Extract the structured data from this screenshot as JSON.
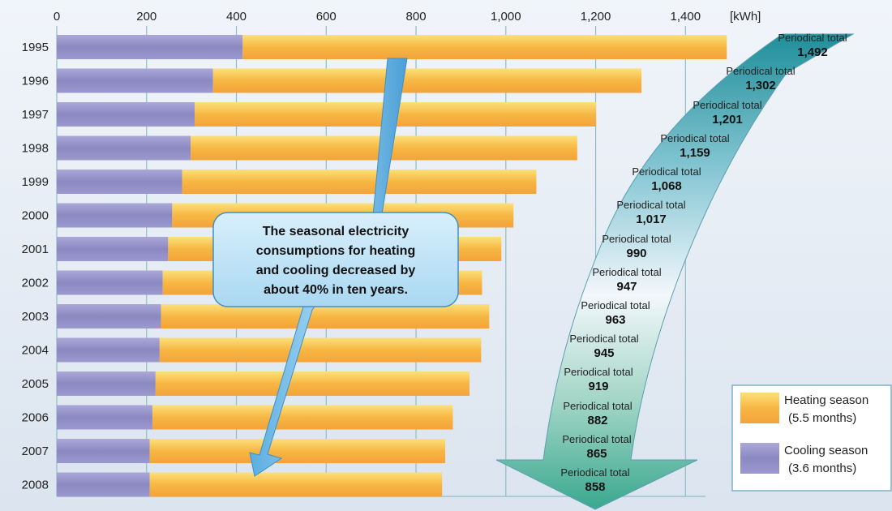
{
  "chart_data": {
    "type": "bar",
    "orientation": "horizontal",
    "stacked": true,
    "unit": "[kWh]",
    "x_ticks": [
      "0",
      "200",
      "400",
      "600",
      "800",
      "1,000",
      "1,200",
      "1,400"
    ],
    "xlim": [
      0,
      1500
    ],
    "grid": true,
    "categories": [
      "1995",
      "1996",
      "1997",
      "1998",
      "1999",
      "2000",
      "2001",
      "2002",
      "2003",
      "2004",
      "2005",
      "2006",
      "2007",
      "2008"
    ],
    "series": [
      {
        "name": "Cooling season (3.6 months)",
        "color": "#8f8cc4",
        "values": [
          414,
          348,
          307,
          298,
          279,
          257,
          248,
          236,
          232,
          229,
          220,
          213,
          207,
          207
        ]
      },
      {
        "name": "Heating season (5.5 months)",
        "color": "#f5b13a",
        "values": [
          1078,
          954,
          894,
          861,
          789,
          760,
          742,
          711,
          731,
          716,
          699,
          669,
          658,
          651
        ]
      }
    ],
    "totals": {
      "label": "Periodical total",
      "values": [
        "1,492",
        "1,302",
        "1,201",
        "1,159",
        "1,068",
        "1,017",
        "990",
        "947",
        "963",
        "945",
        "919",
        "882",
        "865",
        "858"
      ]
    },
    "callout": [
      "The seasonal electricity",
      "consumptions for heating",
      "and cooling decreased by",
      "about 40% in ten years."
    ],
    "legend": {
      "position": "bottom-right",
      "items": [
        {
          "line1": "Heating season",
          "line2": "(5.5 months)",
          "color": "#f5b13a"
        },
        {
          "line1": "Cooling season",
          "line2": "(3.6 months)",
          "color": "#8f8cc4"
        }
      ]
    }
  }
}
